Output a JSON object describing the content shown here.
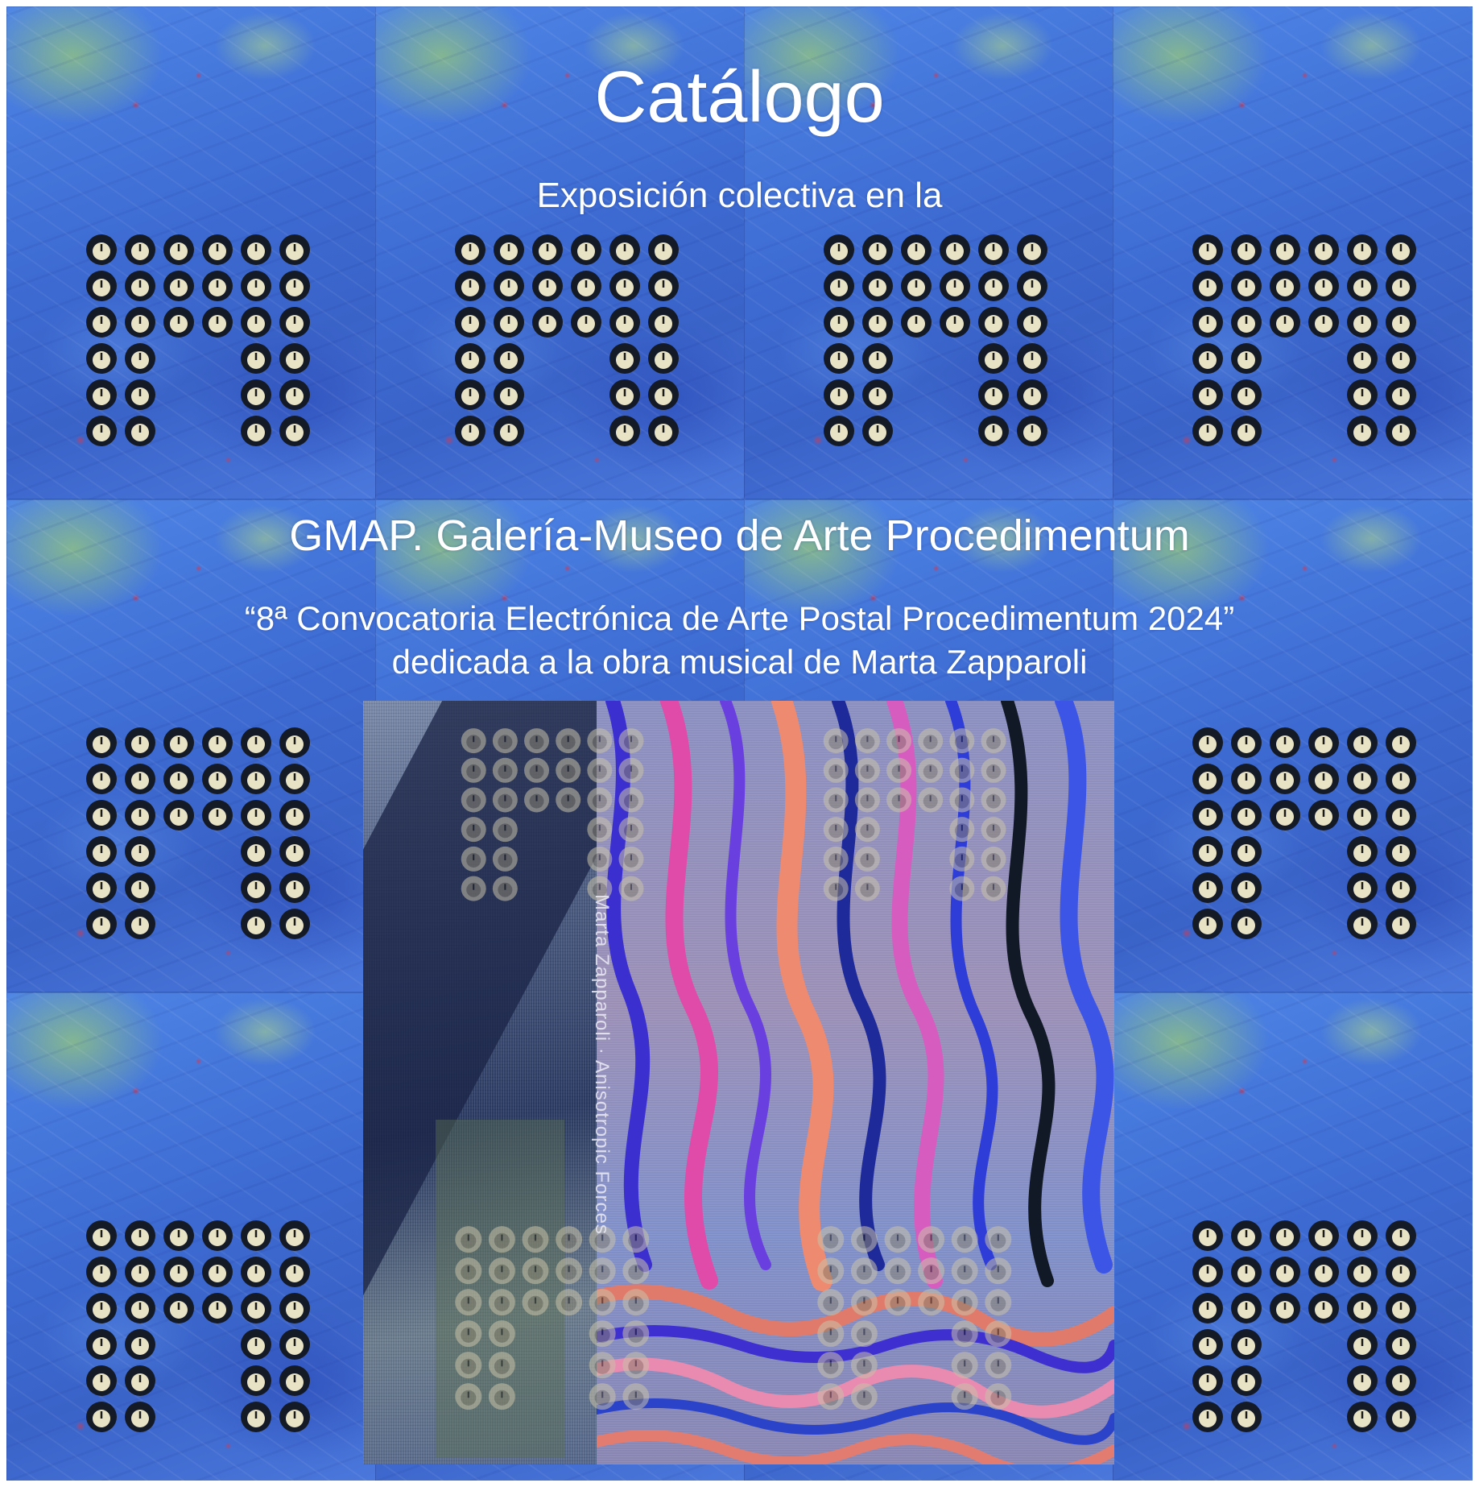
{
  "title": "Catálogo",
  "subtitle": "Exposición colectiva en la",
  "gallery": "GMAP. Galería-Museo de Arte Procedimentum",
  "call": "“8ª Convocatoria Electrónica de Arte Postal Procedimentum 2024”",
  "dedication": "dedicada a la obra musical de Marta Zapparoli",
  "album_spine_text": "Marta Zapparoli · Anisotropic Forces",
  "colors": {
    "background_blue": "#3f6fd6",
    "text": "#ffffff"
  }
}
